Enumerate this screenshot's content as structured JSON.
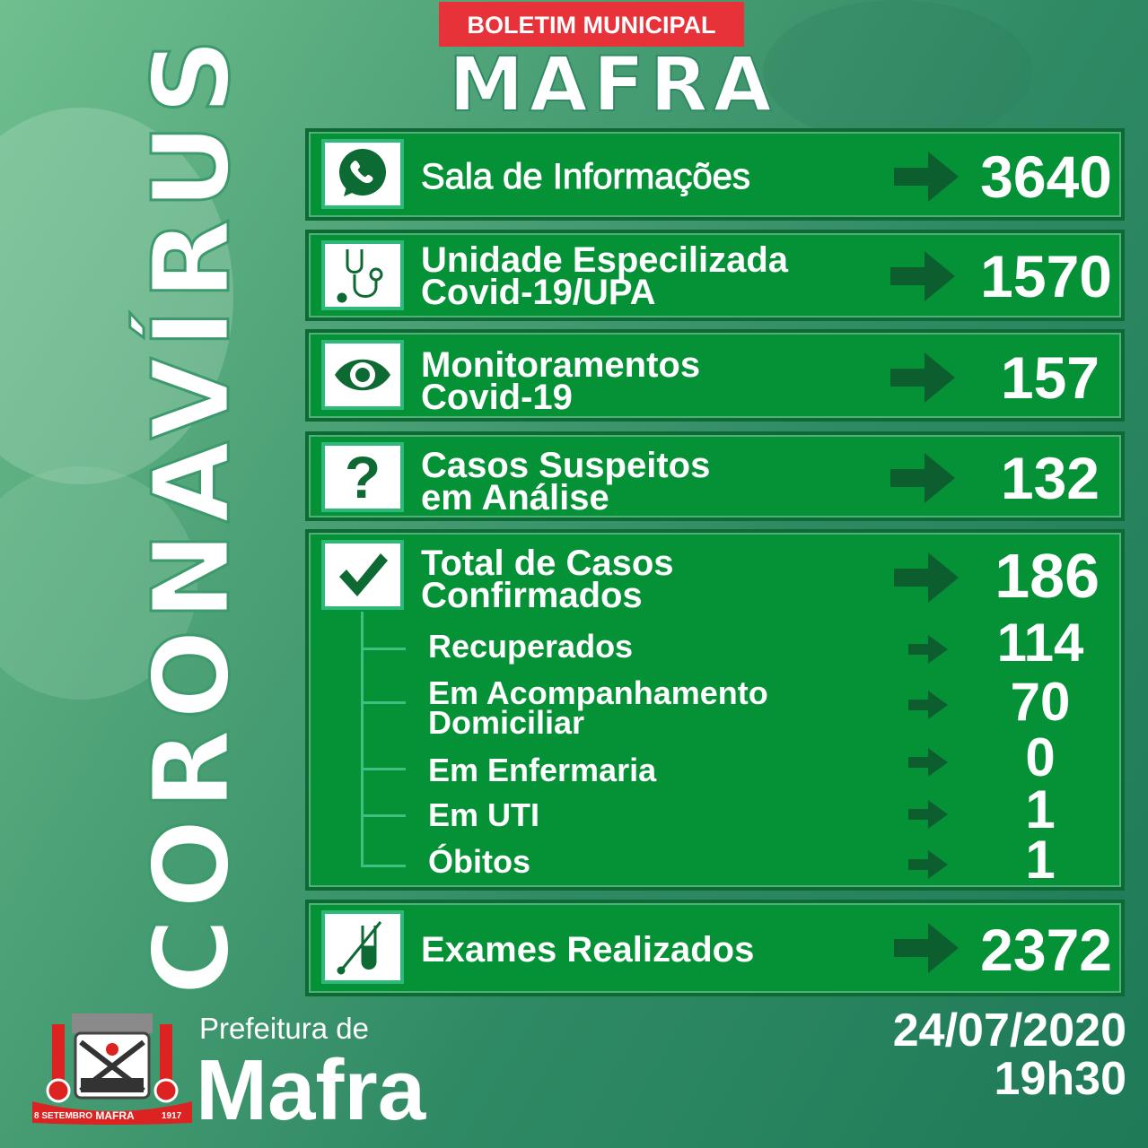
{
  "header": {
    "banner": "BOLETIM MUNICIPAL",
    "city": "MAFRA"
  },
  "side_title": "CORONAVÍRUS",
  "colors": {
    "panel": "#059237",
    "panel_border": "#0d6a33",
    "banner": "#e8323a",
    "arrow": "#0d5e2f"
  },
  "rows": [
    {
      "icon": "whatsapp-icon",
      "label": "Sala de Informações",
      "value": "3640"
    },
    {
      "icon": "stethoscope-icon",
      "label": "Unidade Especilizada",
      "label2": "Covid-19/UPA",
      "value": "1570"
    },
    {
      "icon": "eye-icon",
      "label": "Monitoramentos",
      "label2": "Covid-19",
      "value": "157"
    },
    {
      "icon": "question-icon",
      "label": "Casos Suspeitos",
      "label2": "em Análise",
      "value": "132"
    },
    {
      "icon": "checkmark-icon",
      "label": "Total de Casos",
      "label2": "Confirmados",
      "value": "186"
    },
    {
      "icon": "test-tube-icon",
      "label": "Exames Realizados",
      "value": "2372"
    }
  ],
  "confirmed_breakdown": [
    {
      "label": "Recuperados",
      "value": "114"
    },
    {
      "label": "Em Acompanhamento",
      "label2": "Domiciliar",
      "value": "70"
    },
    {
      "label": "Em Enfermaria",
      "value": "0"
    },
    {
      "label": "Em UTI",
      "value": "1"
    },
    {
      "label": "Óbitos",
      "value": "1"
    }
  ],
  "footer": {
    "prefeitura_line1": "Prefeitura de",
    "prefeitura_line2": "Mafra",
    "date": "24/07/2020",
    "time": "19h30",
    "coat_of_arms_text": [
      "MAFRA",
      "8 SETEMBRO",
      "1917"
    ]
  }
}
